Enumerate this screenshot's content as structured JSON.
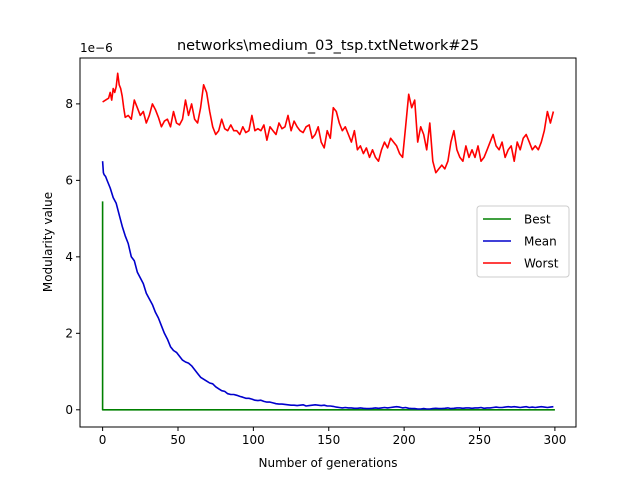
{
  "chart_data": {
    "type": "line",
    "title": "networks\\medium_03_tsp.txtNetwork#25",
    "xlabel": "Number of generations",
    "ylabel": "Modularity value",
    "y_scale_label": "1e−6",
    "xlim": [
      -15,
      314
    ],
    "ylim": [
      -0.45,
      9.2
    ],
    "xticks": [
      0,
      50,
      100,
      150,
      200,
      250,
      300
    ],
    "yticks": [
      0,
      2,
      4,
      6,
      8
    ],
    "grid": false,
    "legend_position": "center-right",
    "series": [
      {
        "name": "Best",
        "color": "#008000",
        "x": [
          0,
          0,
          0.5,
          1,
          300
        ],
        "y": [
          5.45,
          0.0,
          0.0,
          0.0,
          0.0
        ]
      },
      {
        "name": "Mean",
        "color": "#0000cc",
        "x": [
          0,
          0.5,
          1,
          2,
          3,
          5,
          7,
          9,
          11,
          13,
          15,
          17,
          19,
          21,
          23,
          25,
          27,
          29,
          31,
          33,
          35,
          37,
          39,
          41,
          43,
          45,
          47,
          49,
          51,
          53,
          55,
          57,
          59,
          61,
          63,
          65,
          67,
          69,
          71,
          73,
          75,
          77,
          79,
          81,
          83,
          85,
          87,
          89,
          91,
          93,
          95,
          97,
          99,
          101,
          103,
          105,
          107,
          109,
          111,
          113,
          115,
          117,
          119,
          121,
          123,
          125,
          127,
          129,
          131,
          133,
          135,
          137,
          139,
          141,
          143,
          145,
          147,
          149,
          151,
          153,
          155,
          157,
          159,
          161,
          163,
          165,
          167,
          169,
          171,
          173,
          175,
          177,
          179,
          181,
          183,
          185,
          187,
          189,
          191,
          193,
          195,
          197,
          199,
          201,
          203,
          205,
          207,
          209,
          211,
          213,
          215,
          217,
          219,
          221,
          223,
          225,
          227,
          229,
          231,
          233,
          235,
          237,
          239,
          241,
          243,
          245,
          247,
          249,
          251,
          253,
          255,
          257,
          259,
          261,
          263,
          265,
          267,
          269,
          271,
          273,
          275,
          277,
          279,
          281,
          283,
          285,
          287,
          289,
          291,
          293,
          295,
          297,
          299
        ],
        "y": [
          6.5,
          6.2,
          6.15,
          6.1,
          6.0,
          5.8,
          5.55,
          5.4,
          5.1,
          4.8,
          4.55,
          4.35,
          4.0,
          3.9,
          3.6,
          3.45,
          3.3,
          3.05,
          2.9,
          2.75,
          2.55,
          2.4,
          2.2,
          2.0,
          1.85,
          1.65,
          1.55,
          1.5,
          1.4,
          1.3,
          1.25,
          1.22,
          1.15,
          1.05,
          0.95,
          0.85,
          0.8,
          0.75,
          0.7,
          0.68,
          0.6,
          0.55,
          0.5,
          0.48,
          0.42,
          0.4,
          0.4,
          0.38,
          0.35,
          0.33,
          0.3,
          0.3,
          0.28,
          0.25,
          0.24,
          0.25,
          0.22,
          0.2,
          0.2,
          0.18,
          0.16,
          0.15,
          0.15,
          0.14,
          0.13,
          0.12,
          0.12,
          0.11,
          0.12,
          0.13,
          0.1,
          0.11,
          0.12,
          0.13,
          0.12,
          0.11,
          0.12,
          0.1,
          0.1,
          0.09,
          0.07,
          0.06,
          0.05,
          0.06,
          0.05,
          0.05,
          0.04,
          0.04,
          0.05,
          0.04,
          0.03,
          0.03,
          0.04,
          0.05,
          0.04,
          0.05,
          0.06,
          0.05,
          0.06,
          0.07,
          0.08,
          0.07,
          0.05,
          0.06,
          0.04,
          0.03,
          0.03,
          0.02,
          0.02,
          0.03,
          0.02,
          0.02,
          0.03,
          0.04,
          0.03,
          0.03,
          0.04,
          0.05,
          0.03,
          0.04,
          0.05,
          0.05,
          0.04,
          0.05,
          0.05,
          0.04,
          0.05,
          0.05,
          0.06,
          0.04,
          0.05,
          0.05,
          0.06,
          0.07,
          0.06,
          0.06,
          0.07,
          0.08,
          0.07,
          0.08,
          0.07,
          0.06,
          0.07,
          0.08,
          0.06,
          0.07,
          0.06,
          0.07,
          0.08,
          0.07,
          0.06,
          0.07,
          0.08
        ]
      },
      {
        "name": "Worst",
        "color": "#ff0000",
        "x": [
          0,
          2,
          4,
          5,
          6,
          7,
          8,
          9,
          10,
          11,
          12,
          13,
          14,
          15,
          17,
          19,
          21,
          23,
          25,
          27,
          29,
          31,
          33,
          35,
          37,
          39,
          41,
          43,
          45,
          47,
          49,
          51,
          53,
          55,
          57,
          59,
          61,
          63,
          65,
          67,
          69,
          71,
          73,
          75,
          77,
          79,
          81,
          83,
          85,
          87,
          89,
          91,
          93,
          95,
          97,
          99,
          101,
          103,
          105,
          107,
          109,
          111,
          113,
          115,
          117,
          119,
          121,
          123,
          125,
          127,
          129,
          131,
          133,
          135,
          137,
          139,
          141,
          143,
          145,
          147,
          149,
          151,
          153,
          155,
          157,
          159,
          161,
          163,
          165,
          167,
          169,
          171,
          173,
          175,
          177,
          179,
          181,
          183,
          185,
          187,
          189,
          191,
          193,
          195,
          197,
          199,
          201,
          203,
          205,
          207,
          209,
          211,
          213,
          215,
          217,
          219,
          221,
          223,
          225,
          227,
          229,
          231,
          233,
          235,
          237,
          239,
          241,
          243,
          245,
          247,
          249,
          251,
          253,
          255,
          257,
          259,
          261,
          263,
          265,
          267,
          269,
          271,
          273,
          275,
          277,
          279,
          281,
          283,
          285,
          287,
          289,
          291,
          293,
          295,
          297,
          299
        ],
        "y": [
          8.05,
          8.1,
          8.15,
          8.3,
          8.1,
          8.4,
          8.3,
          8.45,
          8.8,
          8.5,
          8.4,
          8.2,
          7.9,
          7.65,
          7.7,
          7.6,
          8.1,
          7.9,
          7.7,
          7.8,
          7.5,
          7.7,
          8.0,
          7.85,
          7.65,
          7.4,
          7.55,
          7.6,
          7.4,
          7.8,
          7.5,
          7.45,
          7.6,
          8.1,
          7.7,
          8.0,
          7.6,
          7.5,
          7.9,
          8.5,
          8.3,
          7.8,
          7.4,
          7.2,
          7.3,
          7.6,
          7.35,
          7.3,
          7.45,
          7.3,
          7.3,
          7.2,
          7.4,
          7.25,
          7.3,
          7.7,
          7.3,
          7.35,
          7.3,
          7.45,
          7.05,
          7.4,
          7.3,
          7.2,
          7.5,
          7.35,
          7.4,
          7.7,
          7.3,
          7.55,
          7.4,
          7.3,
          7.25,
          7.4,
          7.45,
          7.1,
          7.2,
          7.4,
          7.0,
          6.85,
          7.3,
          7.1,
          7.9,
          7.8,
          7.5,
          7.3,
          7.4,
          7.2,
          7.0,
          7.3,
          6.8,
          6.9,
          6.7,
          6.85,
          6.6,
          6.8,
          6.6,
          6.5,
          6.8,
          7.0,
          6.85,
          7.1,
          7.0,
          6.9,
          6.7,
          6.6,
          7.4,
          8.25,
          7.9,
          8.1,
          7.0,
          7.4,
          7.2,
          6.8,
          7.5,
          6.5,
          6.2,
          6.3,
          6.4,
          6.3,
          6.5,
          7.0,
          7.3,
          6.8,
          6.6,
          6.5,
          6.9,
          6.6,
          6.8,
          6.6,
          6.9,
          6.5,
          6.6,
          6.8,
          7.0,
          7.2,
          6.9,
          6.8,
          7.0,
          6.6,
          6.8,
          6.9,
          6.5,
          7.0,
          6.8,
          7.1,
          7.2,
          7.0,
          6.8,
          6.9,
          6.8,
          7.0,
          7.3,
          7.8,
          7.5,
          7.8
        ]
      }
    ]
  }
}
